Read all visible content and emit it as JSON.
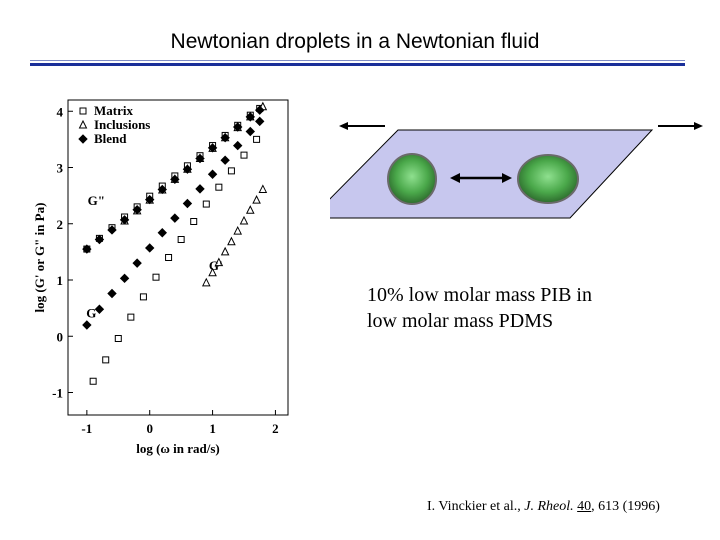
{
  "slide": {
    "title": "Newtonian droplets in a Newtonian fluid",
    "caption_line1": "10% low molar mass PIB in",
    "caption_line2": "low molar mass PDMS",
    "reference": {
      "authors": "I. Vinckier et al.,",
      "journal": "J. Rheol.",
      "volume": "40",
      "rest": "613 (1996)"
    }
  },
  "diagram": {
    "plane_fill": "#c7c7ee",
    "droplet_color": "#4aa84a",
    "arrow_color": "#000000"
  },
  "chart_data": {
    "type": "scatter",
    "xlabel": "log (ω in rad/s)",
    "ylabel": "log (G' or G\" in Pa)",
    "xlim": [
      -1.3,
      2.2
    ],
    "ylim": [
      -1.4,
      4.2
    ],
    "xticks": [
      "-1",
      "0",
      "1",
      "2"
    ],
    "yticks": [
      "-1",
      "0",
      "1",
      "2",
      "3",
      "4"
    ],
    "legend_position": "top-left",
    "legend": [
      "Matrix",
      "Inclusions",
      "Blend"
    ],
    "annotations": [
      {
        "text": "G\"",
        "x": -0.85,
        "y": 2.33
      },
      {
        "text": "G'",
        "x": 1.05,
        "y": 1.18
      },
      {
        "text": "G'",
        "x": -0.9,
        "y": 0.33
      }
    ],
    "series": [
      {
        "name": "Matrix",
        "marker": "square",
        "curve": "G''",
        "x": [
          -1.0,
          -0.8,
          -0.6,
          -0.4,
          -0.2,
          0.0,
          0.2,
          0.4,
          0.6,
          0.8,
          1.0,
          1.2,
          1.4,
          1.6,
          1.75
        ],
        "y": [
          1.55,
          1.74,
          1.93,
          2.12,
          2.3,
          2.49,
          2.67,
          2.85,
          3.03,
          3.21,
          3.39,
          3.57,
          3.75,
          3.93,
          4.05
        ]
      },
      {
        "name": "Matrix",
        "marker": "square",
        "curve": "G'",
        "x": [
          -0.9,
          -0.7,
          -0.5,
          -0.3,
          -0.1,
          0.1,
          0.3,
          0.5,
          0.7,
          0.9,
          1.1,
          1.3,
          1.5,
          1.7
        ],
        "y": [
          -0.8,
          -0.42,
          -0.04,
          0.34,
          0.7,
          1.05,
          1.4,
          1.72,
          2.04,
          2.35,
          2.65,
          2.94,
          3.22,
          3.5
        ]
      },
      {
        "name": "Inclusions",
        "marker": "triangle",
        "curve": "G''",
        "x": [
          -0.4,
          -0.2,
          0.0,
          0.2,
          0.4,
          0.6,
          0.8,
          1.0,
          1.2,
          1.4,
          1.6,
          1.8
        ],
        "y": [
          2.05,
          2.23,
          2.42,
          2.6,
          2.79,
          2.97,
          3.16,
          3.34,
          3.53,
          3.71,
          3.9,
          4.08
        ]
      },
      {
        "name": "Inclusions",
        "marker": "triangle",
        "curve": "G'",
        "x": [
          0.9,
          1.0,
          1.1,
          1.2,
          1.3,
          1.4,
          1.5,
          1.6,
          1.7,
          1.8
        ],
        "y": [
          0.95,
          1.13,
          1.31,
          1.5,
          1.68,
          1.87,
          2.05,
          2.24,
          2.42,
          2.61
        ]
      },
      {
        "name": "Blend",
        "marker": "diamond",
        "curve": "G''",
        "x": [
          -1.0,
          -0.8,
          -0.6,
          -0.4,
          -0.2,
          0.0,
          0.2,
          0.4,
          0.6,
          0.8,
          1.0,
          1.2,
          1.4,
          1.6,
          1.75
        ],
        "y": [
          1.55,
          1.72,
          1.89,
          2.07,
          2.25,
          2.43,
          2.61,
          2.79,
          2.97,
          3.16,
          3.35,
          3.53,
          3.72,
          3.9,
          4.02
        ]
      },
      {
        "name": "Blend",
        "marker": "diamond",
        "curve": "G'",
        "x": [
          -1.0,
          -0.8,
          -0.6,
          -0.4,
          -0.2,
          0.0,
          0.2,
          0.4,
          0.6,
          0.8,
          1.0,
          1.2,
          1.4,
          1.6,
          1.75
        ],
        "y": [
          0.2,
          0.48,
          0.76,
          1.03,
          1.3,
          1.57,
          1.84,
          2.1,
          2.36,
          2.62,
          2.88,
          3.13,
          3.39,
          3.64,
          3.82
        ]
      }
    ]
  }
}
